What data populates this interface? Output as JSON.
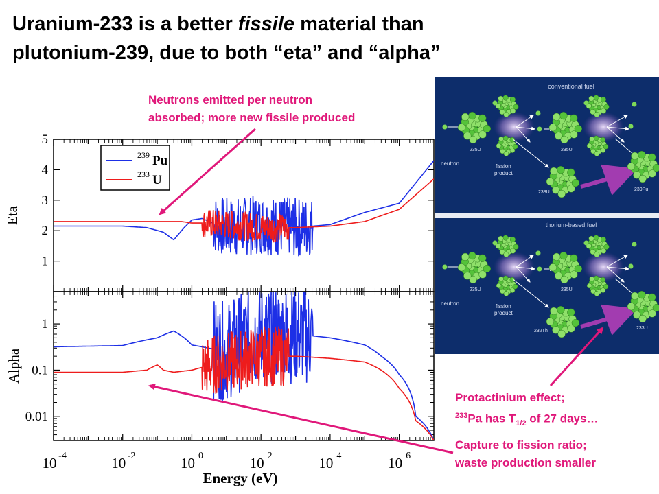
{
  "slide": {
    "title_line1_pre": "Uranium-233 is a better ",
    "title_line1_em": "fissile",
    "title_line1_post": " material than",
    "title_line2": "plutonium-239, due to both “eta” and “alpha”"
  },
  "annotations": {
    "neutrons_line1": "Neutrons emitted per neutron",
    "neutrons_line2": "absorbed; more new fissile produced",
    "protactinium_line1": "Protactinium effect;",
    "protactinium_sup": "233",
    "protactinium_mid": "Pa has T",
    "protactinium_sub": "1/2",
    "protactinium_end": " of 27 days…",
    "capture_line1": "Capture to fission ratio;",
    "capture_line2": "waste production smaller"
  },
  "colors": {
    "pu": "#1d2fe6",
    "u": "#ee1c1c",
    "accent": "#e0187a",
    "panel": "#0d2d6b"
  },
  "chart_data": [
    {
      "type": "line",
      "panel": "top",
      "ylabel": "Eta",
      "ylim": [
        0,
        5
      ],
      "yticks": [
        "1",
        "2",
        "3",
        "4",
        "5"
      ],
      "xscale": "log",
      "xlim": [
        0.0001,
        10000000
      ],
      "legend": {
        "placement": "top-left",
        "entries": [
          {
            "sup": "239",
            "label": "Pu",
            "color": "#1d2fe6"
          },
          {
            "sup": "233",
            "label": "U",
            "color": "#ee1c1c"
          }
        ]
      },
      "series": [
        {
          "name": "239Pu",
          "x": [
            0.0001,
            0.01,
            0.05,
            0.15,
            0.3,
            0.6,
            1,
            2,
            5,
            10,
            100,
            1000,
            10000,
            100000,
            1000000,
            10000000
          ],
          "y": [
            2.15,
            2.15,
            2.1,
            1.95,
            1.7,
            2.1,
            2.35,
            2.4,
            2.2,
            2.1,
            2.2,
            2.1,
            2.2,
            2.6,
            2.9,
            4.3
          ]
        },
        {
          "name": "233U",
          "x": [
            0.0001,
            0.01,
            0.1,
            0.5,
            1,
            2,
            10,
            100,
            1000,
            10000,
            100000,
            1000000,
            10000000
          ],
          "y": [
            2.3,
            2.3,
            2.3,
            2.3,
            2.25,
            2.25,
            2.2,
            2.1,
            2.1,
            2.15,
            2.3,
            2.7,
            3.7
          ]
        }
      ]
    },
    {
      "type": "line",
      "panel": "bottom",
      "ylabel": "Alpha",
      "xlabel": "Energy (eV)",
      "yscale": "log",
      "ylim": [
        0.003,
        5
      ],
      "yticks": [
        "0.01",
        "0.1",
        "1"
      ],
      "xscale": "log",
      "xlim": [
        0.0001,
        10000000
      ],
      "xticks": [
        {
          "base": "10",
          "exp": "-4"
        },
        {
          "base": "10",
          "exp": "-2"
        },
        {
          "base": "10",
          "exp": "0"
        },
        {
          "base": "10",
          "exp": "2"
        },
        {
          "base": "10",
          "exp": "4"
        },
        {
          "base": "10",
          "exp": "6"
        }
      ],
      "series": [
        {
          "name": "239Pu",
          "x": [
            0.0001,
            0.01,
            0.1,
            0.3,
            0.6,
            1,
            3,
            10,
            100,
            1000,
            10000,
            100000,
            300000,
            1000000,
            3000000,
            10000000
          ],
          "y": [
            0.32,
            0.34,
            0.5,
            0.7,
            0.5,
            0.35,
            0.3,
            0.25,
            0.6,
            0.6,
            0.5,
            0.35,
            0.2,
            0.08,
            0.01,
            0.003
          ]
        },
        {
          "name": "233U",
          "x": [
            0.0001,
            0.01,
            0.05,
            0.1,
            0.15,
            0.3,
            1,
            10,
            100,
            1000,
            10000,
            100000,
            300000,
            1000000,
            3000000,
            10000000
          ],
          "y": [
            0.09,
            0.09,
            0.1,
            0.13,
            0.1,
            0.09,
            0.1,
            0.15,
            0.2,
            0.2,
            0.18,
            0.15,
            0.1,
            0.04,
            0.008,
            0.003
          ]
        }
      ]
    }
  ],
  "diagram": {
    "conventional": {
      "title": "conventional fuel",
      "neutron": "neutron",
      "u235a": "235U",
      "fission1": "fission",
      "fission2": "product",
      "u235b": "235U",
      "u238": "238U",
      "pu239": "239Pu"
    },
    "thorium": {
      "title": "thorium-based fuel",
      "neutron": "neutron",
      "u235a": "235U",
      "fission1": "fission",
      "fission2": "product",
      "u235b": "235U",
      "th232": "232Th",
      "u233": "233U"
    }
  }
}
